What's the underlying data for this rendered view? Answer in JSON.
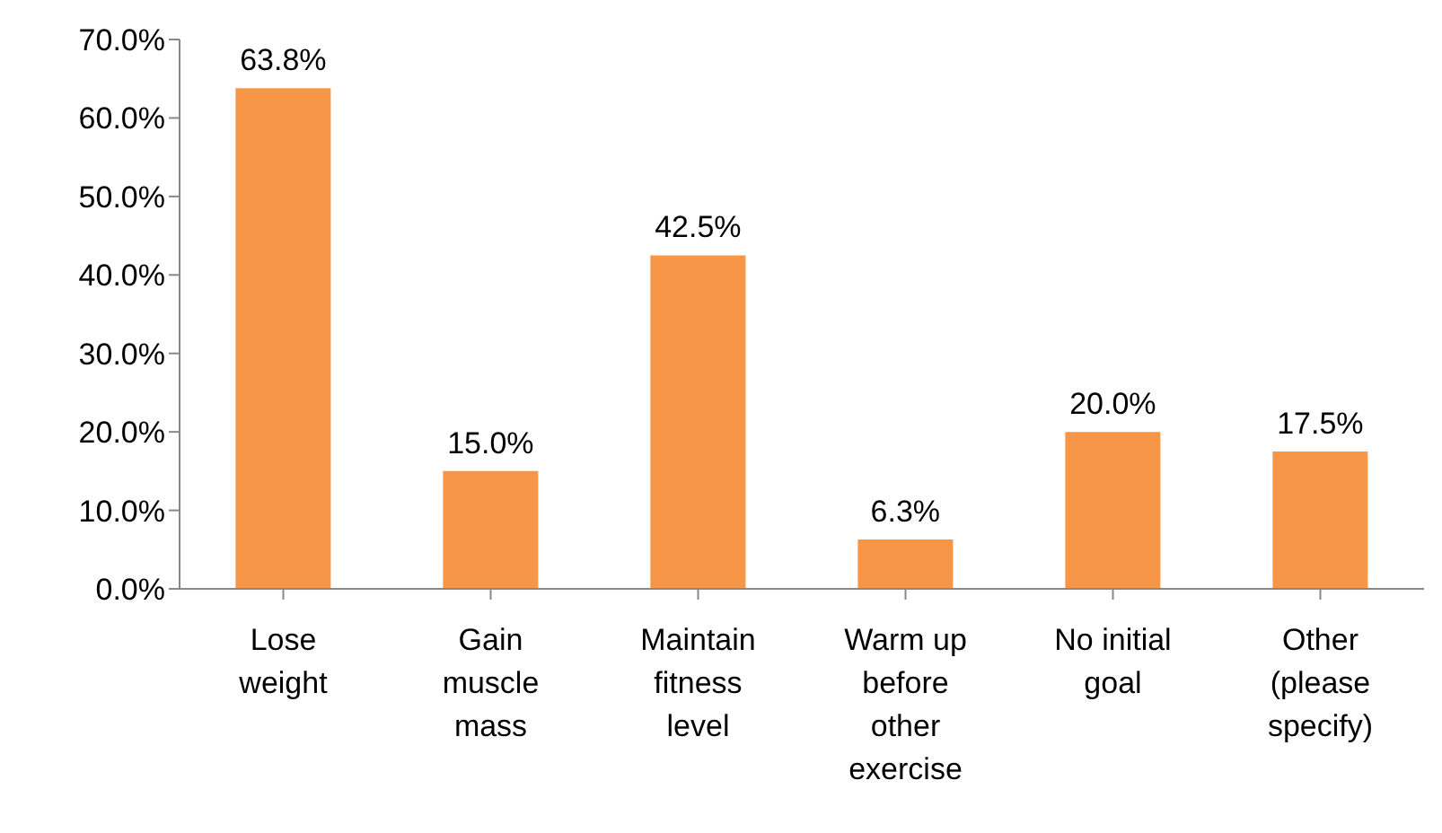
{
  "chart_data": {
    "type": "bar",
    "categories": [
      "Lose weight",
      "Gain muscle mass",
      "Maintain fitness level",
      "Warm up before other exercise",
      "No initial goal",
      "Other (please specify)"
    ],
    "values": [
      63.8,
      15.0,
      42.5,
      6.3,
      20.0,
      17.5
    ],
    "value_labels": [
      "63.8%",
      "15.0%",
      "42.5%",
      "6.3%",
      "20.0%",
      "17.5%"
    ],
    "color": "#f79646",
    "ylim": [
      0,
      70
    ],
    "yticks": [
      {
        "value": 0,
        "label": "0.0%"
      },
      {
        "value": 10,
        "label": "10.0%"
      },
      {
        "value": 20,
        "label": "20.0%"
      },
      {
        "value": 30,
        "label": "30.0%"
      },
      {
        "value": 40,
        "label": "40.0%"
      },
      {
        "value": 50,
        "label": "50.0%"
      },
      {
        "value": 60,
        "label": "60.0%"
      },
      {
        "value": 70,
        "label": "70.0%"
      }
    ],
    "grid": false,
    "legend": false
  }
}
